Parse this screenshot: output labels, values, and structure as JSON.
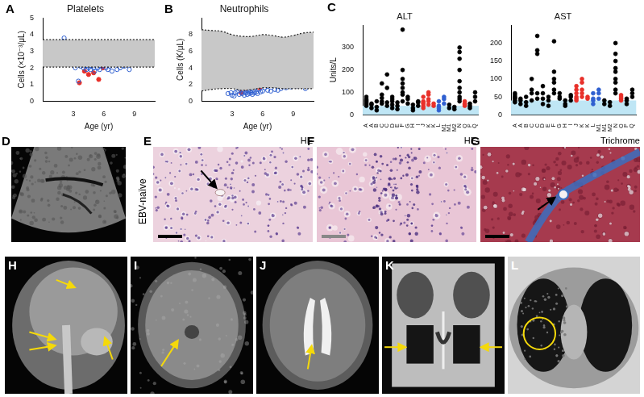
{
  "chart_data": [
    {
      "type": "scatter",
      "panel": "A",
      "title": "Platelets",
      "x_label": "Age (yr)",
      "y_label": "Cells (×10⁻³/μL)",
      "xlim": [
        0,
        11
      ],
      "xticks": [
        3,
        6,
        9
      ],
      "ylim": [
        0,
        5
      ],
      "yticks": [
        0,
        1,
        2,
        3,
        4,
        5
      ],
      "grid": false,
      "reference_range": {
        "x": [
          0,
          11
        ],
        "lower": [
          2.05,
          2.05
        ],
        "upper": [
          3.7,
          3.7
        ],
        "color": "#c8c8c8",
        "line_style": "dotted"
      },
      "series": [
        {
          "color": "#2f5fd0",
          "marker": "open_circle",
          "x": [
            1.8,
            2.0,
            2.1,
            2.3,
            2.5,
            2.6,
            2.7,
            2.8,
            3.0,
            3.1,
            3.2,
            3.3,
            3.4,
            3.5,
            3.6,
            3.7,
            3.8,
            3.9,
            4.0,
            4.1,
            4.2,
            4.3,
            4.4,
            4.5,
            4.6,
            4.7,
            4.8,
            4.9,
            5.0,
            5.1,
            5.2,
            5.4,
            5.5,
            5.6,
            5.8,
            6.0,
            6.2,
            6.4,
            6.6,
            6.8,
            7.0,
            7.3,
            7.6,
            8.0,
            8.5,
            9.2,
            9.6
          ],
          "y": [
            3.3,
            3.6,
            3.8,
            2.7,
            3.4,
            2.9,
            2.5,
            3.1,
            2.7,
            2.3,
            2.0,
            2.6,
            2.2,
            1.2,
            2.4,
            2.1,
            2.8,
            2.2,
            2.0,
            2.5,
            2.1,
            1.9,
            2.3,
            2.0,
            2.2,
            1.9,
            2.1,
            2.4,
            2.0,
            1.8,
            2.2,
            2.0,
            2.3,
            1.9,
            2.1,
            2.2,
            2.0,
            1.9,
            2.1,
            1.8,
            2.2,
            1.9,
            2.0,
            2.1,
            1.9,
            2.4,
            2.6
          ]
        },
        {
          "color": "#e8302a",
          "marker": "circle",
          "x": [
            3.3,
            3.6,
            3.8,
            4.1,
            4.5,
            5.0,
            5.5,
            5.9
          ],
          "y": [
            2.6,
            1.1,
            2.2,
            1.8,
            1.6,
            1.7,
            1.3,
            2.0
          ]
        }
      ]
    },
    {
      "type": "scatter",
      "panel": "B",
      "title": "Neutrophils",
      "x_label": "Age (yr)",
      "y_label": "Cells (K/μL)",
      "xlim": [
        0,
        11
      ],
      "xticks": [
        3,
        6,
        9
      ],
      "ylim": [
        0,
        10
      ],
      "yticks": [
        0,
        2,
        4,
        6,
        8
      ],
      "grid": false,
      "reference_range": {
        "x": [
          0,
          1,
          2,
          3,
          4,
          5,
          6,
          7,
          8,
          9,
          10,
          11
        ],
        "lower": [
          1.2,
          1.4,
          1.5,
          1.5,
          1.3,
          1.4,
          1.6,
          1.6,
          1.5,
          1.5,
          1.5,
          1.5
        ],
        "upper": [
          8.6,
          8.5,
          8.4,
          8.0,
          7.8,
          7.8,
          8.0,
          7.9,
          7.7,
          7.9,
          8.2,
          8.3
        ],
        "color": "#c8c8c8",
        "line_style": "dotted"
      },
      "series": [
        {
          "color": "#2f5fd0",
          "marker": "open_circle",
          "x": [
            2.6,
            2.9,
            3.0,
            3.2,
            3.3,
            3.5,
            3.7,
            3.8,
            4.0,
            4.1,
            4.2,
            4.3,
            4.4,
            4.5,
            4.6,
            4.7,
            4.8,
            4.9,
            5.0,
            5.1,
            5.2,
            5.4,
            5.5,
            5.6,
            5.8,
            6.0,
            6.2,
            6.5,
            6.8,
            7.2,
            7.5,
            7.8,
            8.3,
            8.8,
            9.4,
            10.2
          ],
          "y": [
            0.9,
            1.0,
            0.7,
            0.6,
            1.0,
            1.1,
            0.8,
            1.4,
            0.9,
            1.2,
            0.7,
            1.0,
            1.3,
            0.8,
            1.1,
            0.9,
            1.2,
            1.0,
            0.8,
            1.3,
            1.0,
            1.1,
            0.9,
            1.4,
            1.1,
            1.2,
            1.6,
            1.3,
            1.2,
            1.4,
            1.3,
            1.5,
            1.6,
            1.7,
            1.8,
            1.5
          ]
        },
        {
          "color": "#e8302a",
          "marker": "circle",
          "x": [
            3.9,
            4.3,
            4.8,
            5.5,
            5.7,
            5.9,
            6.1
          ],
          "y": [
            1.0,
            1.5,
            1.9,
            2.2,
            1.6,
            3.2,
            2.0
          ]
        }
      ]
    },
    {
      "type": "strip",
      "panel": "C",
      "title": "ALT",
      "y_label": "Units/L",
      "ylim": [
        0,
        400
      ],
      "yticks": [
        0,
        100,
        200,
        300
      ],
      "grid": false,
      "reference_range": {
        "lower": 0,
        "upper": 40,
        "color": "#bfe6f5"
      },
      "categories": [
        "A",
        "A",
        "B",
        "C",
        "C",
        "D",
        "E",
        "F",
        "G",
        "H",
        "I",
        "J",
        "K",
        "K",
        "L",
        "M1",
        "M1",
        "M2",
        "N",
        "O",
        "P",
        "Q"
      ],
      "colors": [
        "#000000",
        "#000000",
        "#000000",
        "#000000",
        "#000000",
        "#000000",
        "#000000",
        "#000000",
        "#000000",
        "#000000",
        "#000000",
        "#e8302a",
        "#e8302a",
        "#e8302a",
        "#2f5fd0",
        "#2f5fd0",
        "#000000",
        "#000000",
        "#000000",
        "#e8302a",
        "#000000",
        "#000000"
      ],
      "values": [
        [
          40,
          55,
          70,
          60,
          45,
          80,
          65,
          50
        ],
        [
          30,
          45,
          50
        ],
        [
          20,
          35,
          60
        ],
        [
          50,
          90,
          140,
          75,
          60
        ],
        [
          40,
          55,
          180,
          120
        ],
        [
          30,
          45,
          60,
          80,
          70
        ],
        [
          25,
          40,
          55
        ],
        [
          120,
          160,
          380,
          200,
          140,
          100,
          90,
          60
        ],
        [
          80,
          70,
          50
        ],
        [
          30,
          45,
          20
        ],
        [
          40,
          60,
          55
        ],
        [
          30,
          40,
          50,
          60,
          80,
          55
        ],
        [
          70,
          90,
          60,
          100,
          45
        ],
        [
          50,
          40
        ],
        [
          20,
          40,
          60,
          30
        ],
        [
          50,
          80,
          70
        ],
        [
          30,
          45
        ],
        [
          25,
          35
        ],
        [
          60,
          100,
          150,
          300,
          280,
          200,
          250,
          120,
          80,
          70
        ],
        [
          40,
          60,
          50,
          45
        ],
        [
          30,
          50,
          40
        ],
        [
          60,
          100,
          80
        ]
      ]
    },
    {
      "type": "strip",
      "title": "AST",
      "ylim": [
        0,
        250
      ],
      "yticks": [
        0,
        50,
        100,
        150,
        200
      ],
      "grid": false,
      "reference_range": {
        "lower": 0,
        "upper": 40,
        "color": "#bfe6f5"
      },
      "categories": [
        "A",
        "A",
        "B",
        "C",
        "C",
        "D",
        "E",
        "F",
        "G",
        "H",
        "I",
        "J",
        "K",
        "K",
        "L",
        "M1",
        "M1",
        "M2",
        "N",
        "O",
        "P",
        "Q"
      ],
      "colors": [
        "#000000",
        "#000000",
        "#000000",
        "#000000",
        "#000000",
        "#000000",
        "#000000",
        "#000000",
        "#000000",
        "#000000",
        "#000000",
        "#e8302a",
        "#e8302a",
        "#e8302a",
        "#2f5fd0",
        "#2f5fd0",
        "#000000",
        "#000000",
        "#000000",
        "#e8302a",
        "#000000",
        "#000000"
      ],
      "values": [
        [
          35,
          45,
          55,
          50,
          40,
          60,
          48
        ],
        [
          30,
          40,
          45
        ],
        [
          25,
          35,
          50
        ],
        [
          40,
          70,
          100,
          60
        ],
        [
          45,
          60,
          220,
          180,
          170
        ],
        [
          30,
          45,
          60,
          80
        ],
        [
          25,
          40,
          50
        ],
        [
          60,
          100,
          205,
          120,
          90,
          70
        ],
        [
          50,
          60,
          45
        ],
        [
          30,
          40,
          25
        ],
        [
          40,
          55,
          50
        ],
        [
          40,
          50,
          60,
          70,
          80,
          45
        ],
        [
          60,
          90,
          70,
          100,
          50
        ],
        [
          50,
          45
        ],
        [
          30,
          45,
          60,
          40
        ],
        [
          45,
          70,
          60
        ],
        [
          30,
          40
        ],
        [
          25,
          35
        ],
        [
          60,
          100,
          130,
          200,
          170,
          150,
          120,
          90,
          70
        ],
        [
          40,
          55,
          50,
          45
        ],
        [
          30,
          45,
          40
        ],
        [
          50,
          70,
          60
        ]
      ]
    }
  ],
  "image_panels": [
    {
      "panel": "D"
    },
    {
      "panel": "E",
      "label": "HE"
    },
    {
      "panel": "F",
      "label": "HE"
    },
    {
      "panel": "G",
      "label": "Trichrome"
    },
    {
      "panel": "H"
    },
    {
      "panel": "I"
    },
    {
      "panel": "J"
    },
    {
      "panel": "K"
    },
    {
      "panel": "L"
    }
  ],
  "row_label": "EBV-naïve"
}
